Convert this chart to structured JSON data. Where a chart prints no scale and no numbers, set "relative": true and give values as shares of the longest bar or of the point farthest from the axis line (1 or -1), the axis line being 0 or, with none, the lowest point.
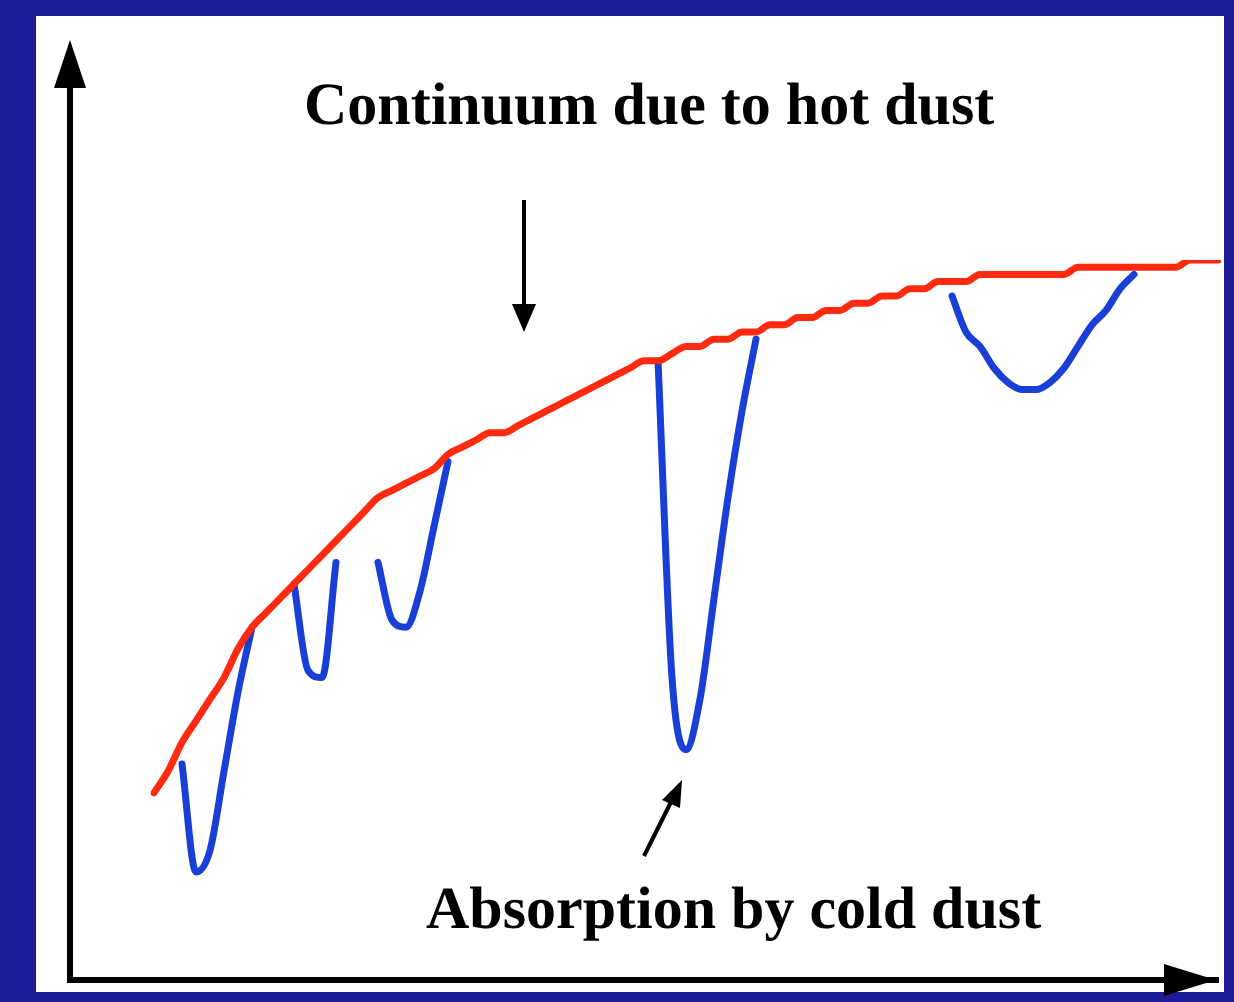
{
  "chart_data": {
    "type": "line",
    "relative": true,
    "marker": "none",
    "categories": [
      null,
      null,
      null,
      null,
      null,
      null,
      null,
      null,
      null,
      null,
      null,
      null,
      null,
      null,
      null,
      null,
      null,
      null,
      null,
      null,
      null,
      null,
      null,
      null,
      null,
      null,
      null,
      null,
      null,
      null,
      null,
      null,
      null,
      null,
      null,
      null,
      null,
      null,
      null,
      null,
      null,
      null,
      null,
      null,
      null,
      null,
      null,
      null,
      null,
      null,
      null,
      null,
      null,
      null,
      null,
      null,
      null,
      null,
      null,
      null,
      null,
      null,
      null,
      null,
      null,
      null,
      null,
      null,
      null,
      null,
      null,
      null,
      null,
      null,
      null,
      null,
      null
    ],
    "series": [
      {
        "name": "Continuum due to hot dust",
        "color": "#ff2a10",
        "values": [
          0.26,
          0.29,
          0.33,
          0.36,
          0.39,
          0.42,
          0.46,
          0.49,
          0.51,
          0.53,
          0.55,
          0.57,
          0.59,
          0.61,
          0.63,
          0.65,
          0.67,
          0.68,
          0.69,
          0.7,
          0.71,
          0.73,
          0.74,
          0.75,
          0.76,
          0.76,
          0.77,
          0.78,
          0.79,
          0.8,
          0.81,
          0.82,
          0.83,
          0.84,
          0.85,
          0.86,
          0.86,
          0.87,
          0.88,
          0.88,
          0.89,
          0.89,
          0.9,
          0.9,
          0.91,
          0.91,
          0.92,
          0.92,
          0.93,
          0.93,
          0.94,
          0.94,
          0.95,
          0.95,
          0.96,
          0.96,
          0.97,
          0.97,
          0.97,
          0.98,
          0.98,
          0.98,
          0.98,
          0.98,
          0.98,
          0.98,
          0.99,
          0.99,
          0.99,
          0.99,
          0.99,
          0.99,
          0.99,
          0.99,
          1.0,
          1.0,
          1.0
        ]
      },
      {
        "name": "Absorption by cold dust",
        "color": "#1a3fd6",
        "values": [
          null,
          null,
          0.3,
          0.15,
          0.18,
          0.29,
          0.4,
          0.49,
          null,
          null,
          0.55,
          0.43,
          0.42,
          0.58,
          null,
          null,
          0.58,
          0.5,
          0.49,
          0.54,
          0.63,
          0.72,
          null,
          null,
          null,
          null,
          null,
          null,
          null,
          null,
          null,
          null,
          null,
          null,
          null,
          null,
          0.86,
          0.42,
          0.32,
          0.39,
          0.53,
          0.67,
          0.79,
          0.89,
          null,
          null,
          null,
          null,
          null,
          null,
          null,
          null,
          null,
          null,
          null,
          null,
          null,
          0.95,
          0.9,
          0.88,
          0.85,
          0.83,
          0.82,
          0.82,
          0.83,
          0.85,
          0.88,
          0.91,
          0.93,
          0.96,
          0.98,
          null,
          null,
          null,
          null,
          null,
          null
        ]
      }
    ]
  }
}
